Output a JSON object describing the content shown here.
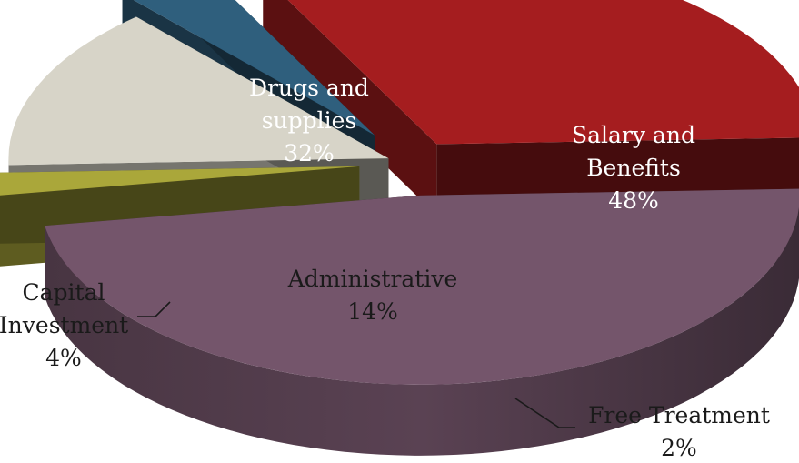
{
  "chart_data": {
    "type": "pie",
    "variant": "3d-exploded",
    "title": "",
    "slices": [
      {
        "name": "Salary and Benefits",
        "value": 48,
        "display": [
          "Salary and",
          "Benefits",
          "48%"
        ],
        "color": "#74556b",
        "label_color": "#ffffff"
      },
      {
        "name": "Free Treatment",
        "value": 2,
        "display": [
          "Free Treatment",
          "2%"
        ],
        "color": "#aaa73a",
        "label_color": "#1a1a1a"
      },
      {
        "name": "Administrative",
        "value": 14,
        "display": [
          "Administrative",
          "14%"
        ],
        "color": "#d7d4c8",
        "label_color": "#1a1a1a"
      },
      {
        "name": "Capital Investment",
        "value": 4,
        "display": [
          "Capital",
          "Investment",
          "4%"
        ],
        "color": "#2f5f7d",
        "label_color": "#1a1a1a"
      },
      {
        "name": "Drugs and supplies",
        "value": 32,
        "display": [
          "Drugs and",
          "supplies",
          "32%"
        ],
        "color": "#a51d1f",
        "label_color": "#ffffff"
      }
    ]
  }
}
